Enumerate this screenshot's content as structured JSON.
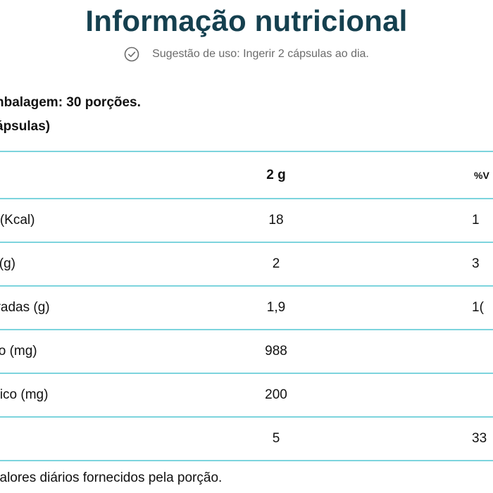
{
  "header": {
    "title": "Informação nutricional",
    "suggestion_text": "Sugestão de uso: Ingerir 2 cápsulas ao dia.",
    "suggestion_icon": "check-circle-icon"
  },
  "portion": {
    "line1": "nbalagem: 30 porções.",
    "line2": "ápsulas)"
  },
  "table": {
    "header": {
      "name": "",
      "amount": "2 g",
      "vd": "%V"
    },
    "rows": [
      {
        "name": "o (Kcal)",
        "amount": "18",
        "vd": "1"
      },
      {
        "name": "s (g)",
        "amount": "2",
        "vd": "3"
      },
      {
        "name": "uradas (g)",
        "amount": "1,9",
        "vd": "1("
      },
      {
        "name": "ico (mg)",
        "amount": "988",
        "vd": ""
      },
      {
        "name": "rílico (mg)",
        "amount": "200",
        "vd": ""
      },
      {
        "name": ")",
        "amount": "5",
        "vd": "33"
      }
    ]
  },
  "footnote": "valores diários fornecidos pela porção.",
  "colors": {
    "title": "#15404f",
    "divider": "#7dd4dd",
    "muted_text": "#6b6b6b"
  }
}
